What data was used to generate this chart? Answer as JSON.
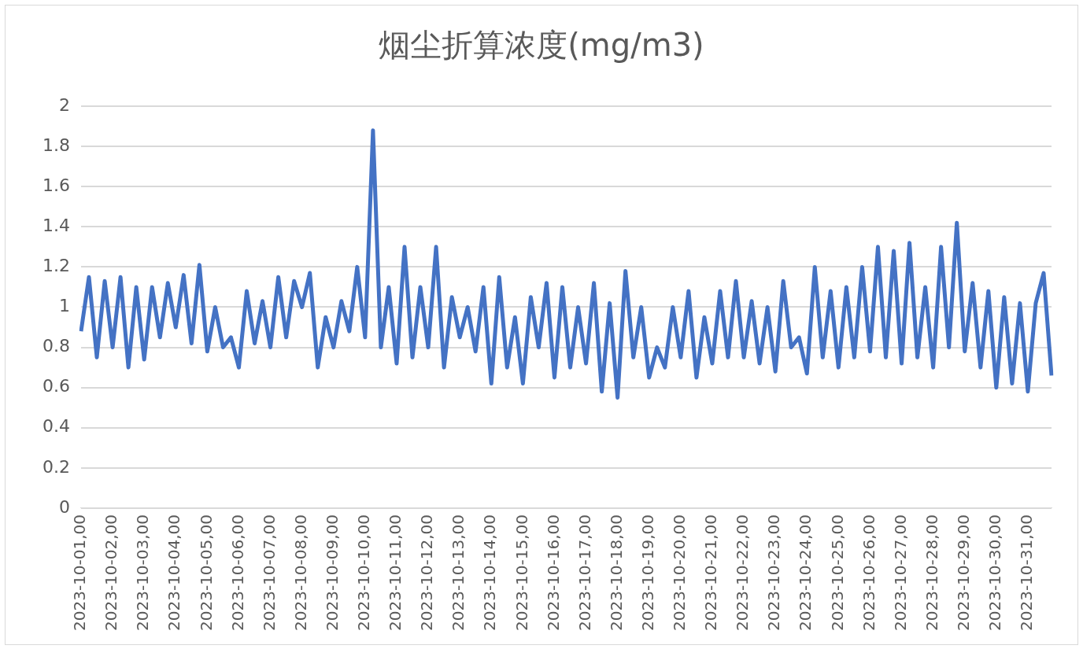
{
  "chart_data": {
    "type": "line",
    "title": "烟尘折算浓度(mg/m3)",
    "categories": [
      "2023-10-01,00",
      null,
      null,
      null,
      "2023-10-02,00",
      null,
      null,
      null,
      "2023-10-03,00",
      null,
      null,
      null,
      "2023-10-04,00",
      null,
      null,
      null,
      "2023-10-05,00",
      null,
      null,
      null,
      "2023-10-06,00",
      null,
      null,
      null,
      "2023-10-07,00",
      null,
      null,
      null,
      "2023-10-08,00",
      null,
      null,
      null,
      "2023-10-09,00",
      null,
      null,
      null,
      "2023-10-10,00",
      null,
      null,
      null,
      "2023-10-11,00",
      null,
      null,
      null,
      "2023-10-12,00",
      null,
      null,
      null,
      "2023-10-13,00",
      null,
      null,
      null,
      "2023-10-14,00",
      null,
      null,
      null,
      "2023-10-15,00",
      null,
      null,
      null,
      "2023-10-16,00",
      null,
      null,
      null,
      "2023-10-17,00",
      null,
      null,
      null,
      "2023-10-18,00",
      null,
      null,
      null,
      "2023-10-19,00",
      null,
      null,
      null,
      "2023-10-20,00",
      null,
      null,
      null,
      "2023-10-21,00",
      null,
      null,
      null,
      "2023-10-22,00",
      null,
      null,
      null,
      "2023-10-23,00",
      null,
      null,
      null,
      "2023-10-24,00",
      null,
      null,
      null,
      "2023-10-25,00",
      null,
      null,
      null,
      "2023-10-26,00",
      null,
      null,
      null,
      "2023-10-27,00",
      null,
      null,
      null,
      "2023-10-28,00",
      null,
      null,
      null,
      "2023-10-29,00",
      null,
      null,
      null,
      "2023-10-30,00",
      null,
      null,
      null,
      "2023-10-31,00",
      null,
      null,
      null
    ],
    "series": [
      {
        "color": "#4472c4",
        "values": [
          0.88,
          1.15,
          0.75,
          1.13,
          0.8,
          1.15,
          0.7,
          1.1,
          0.74,
          1.1,
          0.85,
          1.12,
          0.9,
          1.16,
          0.82,
          1.21,
          0.78,
          1.0,
          0.8,
          0.85,
          0.7,
          1.08,
          0.82,
          1.03,
          0.8,
          1.15,
          0.85,
          1.13,
          1.0,
          1.17,
          0.7,
          0.95,
          0.8,
          1.03,
          0.88,
          1.2,
          0.85,
          1.88,
          0.8,
          1.1,
          0.72,
          1.3,
          0.75,
          1.1,
          0.8,
          1.3,
          0.7,
          1.05,
          0.85,
          1.0,
          0.78,
          1.1,
          0.62,
          1.15,
          0.7,
          0.95,
          0.62,
          1.05,
          0.8,
          1.12,
          0.65,
          1.1,
          0.7,
          1.0,
          0.72,
          1.12,
          0.58,
          1.02,
          0.55,
          1.18,
          0.75,
          1.0,
          0.65,
          0.8,
          0.7,
          1.0,
          0.75,
          1.08,
          0.65,
          0.95,
          0.72,
          1.08,
          0.75,
          1.13,
          0.75,
          1.03,
          0.72,
          1.0,
          0.68,
          1.13,
          0.8,
          0.85,
          0.67,
          1.2,
          0.75,
          1.08,
          0.7,
          1.1,
          0.75,
          1.2,
          0.78,
          1.3,
          0.75,
          1.28,
          0.72,
          1.32,
          0.75,
          1.1,
          0.7,
          1.3,
          0.8,
          1.42,
          0.78,
          1.12,
          0.7,
          1.08,
          0.6,
          1.05,
          0.62,
          1.02,
          0.58,
          1.02,
          1.17,
          0.66
        ]
      }
    ],
    "ylim": [
      0,
      2
    ],
    "yticks": [
      0,
      0.2,
      0.4,
      0.6,
      0.8,
      1,
      1.2,
      1.4,
      1.6,
      1.8,
      2
    ],
    "grid": "y",
    "legend": false,
    "marker": "none",
    "line_style": "solid"
  }
}
